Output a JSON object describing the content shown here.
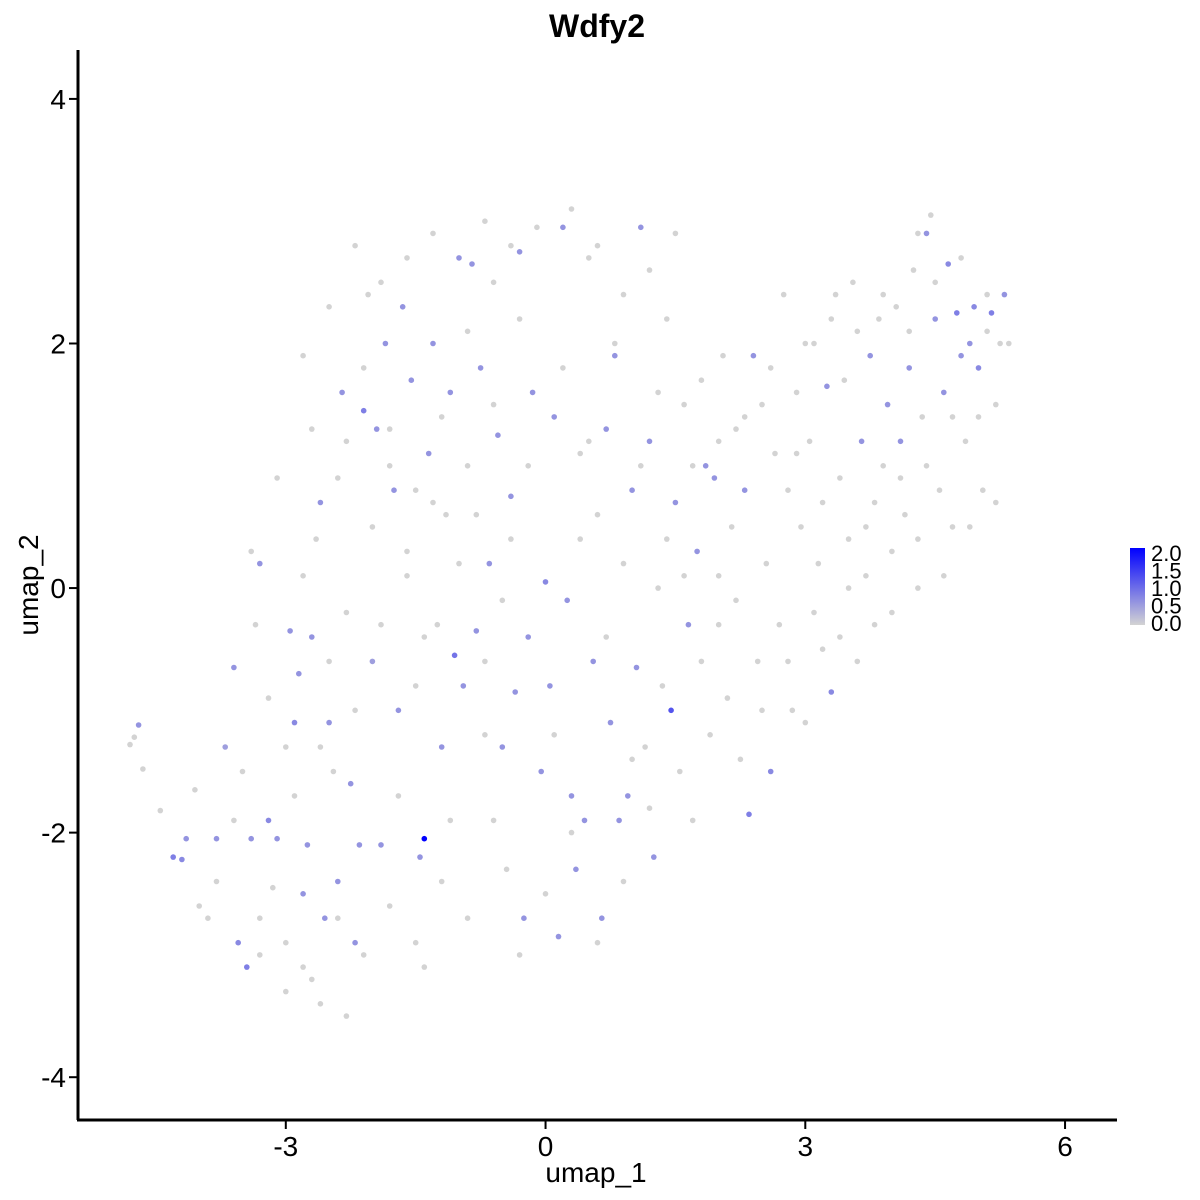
{
  "chart_data": {
    "type": "scatter",
    "title": "Wdfy2",
    "xlabel": "umap_1",
    "ylabel": "umap_2",
    "xlim": [
      -5.4,
      6.6
    ],
    "ylim": [
      -4.35,
      4.4
    ],
    "xticks": [
      {
        "value": -3,
        "label": "-3"
      },
      {
        "value": 0,
        "label": "0"
      },
      {
        "value": 3,
        "label": "3"
      },
      {
        "value": 6,
        "label": "6"
      }
    ],
    "yticks": [
      {
        "value": -4,
        "label": "-4"
      },
      {
        "value": -2,
        "label": "-2"
      },
      {
        "value": 0,
        "label": "0"
      },
      {
        "value": 2,
        "label": "2"
      },
      {
        "value": 4,
        "label": "4"
      }
    ],
    "grid": false,
    "colors": {
      "low": "#d3d3d3",
      "high": "#0000ff"
    },
    "legend": {
      "placement": "right",
      "range": [
        0,
        2.0
      ],
      "labels": [
        {
          "value": 2.0,
          "label": "2.0"
        },
        {
          "value": 1.5,
          "label": "1.5"
        },
        {
          "value": 1.0,
          "label": "1.0"
        },
        {
          "value": 0.5,
          "label": "0.5"
        },
        {
          "value": 0.0,
          "label": "0.0"
        }
      ]
    },
    "points": [
      [
        -4.8,
        -1.28,
        0
      ],
      [
        -4.75,
        -1.22,
        0
      ],
      [
        -4.7,
        -1.12,
        0.6
      ],
      [
        -4.65,
        -1.48,
        0
      ],
      [
        -4.45,
        -1.82,
        0
      ],
      [
        -4.3,
        -2.2,
        0.8
      ],
      [
        -4.2,
        -2.22,
        0.7
      ],
      [
        -4.15,
        -2.05,
        0.6
      ],
      [
        -4.05,
        -1.65,
        0
      ],
      [
        -4.0,
        -2.6,
        0
      ],
      [
        -3.9,
        -2.7,
        0
      ],
      [
        -3.8,
        -2.05,
        0.6
      ],
      [
        -3.7,
        -1.3,
        0.5
      ],
      [
        -3.6,
        -0.65,
        0.6
      ],
      [
        -3.55,
        -2.9,
        0.7
      ],
      [
        -3.45,
        -3.1,
        0.8
      ],
      [
        -3.4,
        -2.05,
        0.6
      ],
      [
        -3.35,
        -0.3,
        0
      ],
      [
        -3.3,
        0.2,
        0.6
      ],
      [
        -3.2,
        -1.9,
        0.7
      ],
      [
        -3.15,
        -2.45,
        0
      ],
      [
        -3.1,
        -2.05,
        0.6
      ],
      [
        -3.0,
        -2.9,
        0
      ],
      [
        -2.95,
        -0.35,
        0.6
      ],
      [
        -2.9,
        -1.1,
        0.7
      ],
      [
        -2.85,
        -0.7,
        0.6
      ],
      [
        -2.8,
        -2.5,
        0.6
      ],
      [
        -2.75,
        -2.1,
        0.6
      ],
      [
        -2.7,
        -0.4,
        0.6
      ],
      [
        -2.65,
        0.4,
        0
      ],
      [
        -2.6,
        0.7,
        0.6
      ],
      [
        -2.55,
        -2.7,
        0.6
      ],
      [
        -2.5,
        -1.1,
        0.6
      ],
      [
        -2.45,
        -1.5,
        0
      ],
      [
        -2.4,
        -2.4,
        0.6
      ],
      [
        -2.35,
        1.6,
        0.6
      ],
      [
        -2.3,
        1.2,
        0
      ],
      [
        -2.25,
        -1.6,
        0.6
      ],
      [
        -2.2,
        -2.9,
        0.6
      ],
      [
        -2.15,
        -2.1,
        0.6
      ],
      [
        -2.1,
        1.45,
        0.8
      ],
      [
        -2.05,
        2.4,
        0
      ],
      [
        -2.0,
        -0.6,
        0.5
      ],
      [
        -1.95,
        1.3,
        0.6
      ],
      [
        -1.9,
        -2.1,
        0.6
      ],
      [
        -1.85,
        2.0,
        0.6
      ],
      [
        -1.8,
        1.0,
        0
      ],
      [
        -1.75,
        0.8,
        0.6
      ],
      [
        -1.7,
        -1.0,
        0.6
      ],
      [
        -1.65,
        2.3,
        0.6
      ],
      [
        -1.6,
        0.3,
        0
      ],
      [
        -1.55,
        1.7,
        0.6
      ],
      [
        -1.5,
        -0.8,
        0
      ],
      [
        -1.45,
        -2.2,
        0.6
      ],
      [
        -1.4,
        -2.05,
        2.0
      ],
      [
        -1.35,
        1.1,
        0.6
      ],
      [
        -1.3,
        2.0,
        0.6
      ],
      [
        -1.25,
        -0.3,
        0
      ],
      [
        -1.2,
        -1.3,
        0.6
      ],
      [
        -1.15,
        0.6,
        0
      ],
      [
        -1.1,
        1.6,
        0.6
      ],
      [
        -1.05,
        -0.55,
        0.9
      ],
      [
        -1.0,
        2.7,
        0.6
      ],
      [
        -0.95,
        -0.8,
        0.6
      ],
      [
        -0.9,
        1.0,
        0
      ],
      [
        -0.85,
        2.65,
        0.6
      ],
      [
        -0.8,
        -0.35,
        0.6
      ],
      [
        -0.75,
        1.8,
        0.6
      ],
      [
        -0.7,
        -1.2,
        0
      ],
      [
        -0.65,
        0.2,
        0.6
      ],
      [
        -0.6,
        2.5,
        0
      ],
      [
        -0.55,
        1.25,
        0.6
      ],
      [
        -0.5,
        -1.3,
        0.6
      ],
      [
        -0.45,
        -2.3,
        0
      ],
      [
        -0.4,
        0.75,
        0.6
      ],
      [
        -0.35,
        -0.85,
        0.6
      ],
      [
        -0.3,
        2.75,
        0.6
      ],
      [
        -0.25,
        -2.7,
        0.6
      ],
      [
        -0.2,
        -0.4,
        0.6
      ],
      [
        -0.15,
        1.6,
        0.6
      ],
      [
        -0.1,
        2.95,
        0
      ],
      [
        -0.05,
        -1.5,
        0.6
      ],
      [
        0.0,
        0.05,
        0.7
      ],
      [
        0.05,
        -0.8,
        0.6
      ],
      [
        0.1,
        1.4,
        0.6
      ],
      [
        0.15,
        -2.85,
        0.6
      ],
      [
        0.2,
        2.95,
        0.6
      ],
      [
        0.25,
        -0.1,
        0.6
      ],
      [
        0.3,
        -1.7,
        0.6
      ],
      [
        0.35,
        -2.3,
        0.6
      ],
      [
        0.4,
        1.1,
        0
      ],
      [
        0.45,
        -1.9,
        0.6
      ],
      [
        0.5,
        2.7,
        0
      ],
      [
        0.55,
        -0.6,
        0.6
      ],
      [
        0.6,
        0.6,
        0
      ],
      [
        0.65,
        -2.7,
        0.6
      ],
      [
        0.7,
        1.3,
        0.6
      ],
      [
        0.75,
        -1.1,
        0.6
      ],
      [
        0.8,
        1.9,
        0.6
      ],
      [
        0.85,
        -1.9,
        0.6
      ],
      [
        0.9,
        0.2,
        0
      ],
      [
        0.95,
        -1.7,
        0.6
      ],
      [
        1.0,
        0.8,
        0.6
      ],
      [
        1.05,
        -0.65,
        0.6
      ],
      [
        1.1,
        2.95,
        0.6
      ],
      [
        1.15,
        -1.3,
        0
      ],
      [
        1.2,
        1.2,
        0.6
      ],
      [
        1.25,
        -2.2,
        0.6
      ],
      [
        1.3,
        0.0,
        0
      ],
      [
        1.35,
        -0.8,
        0
      ],
      [
        1.4,
        2.2,
        0
      ],
      [
        1.45,
        -1.0,
        1.2
      ],
      [
        1.5,
        0.7,
        0.6
      ],
      [
        1.55,
        -1.5,
        0
      ],
      [
        1.6,
        1.5,
        0
      ],
      [
        1.65,
        -0.3,
        0.6
      ],
      [
        1.7,
        -1.9,
        0
      ],
      [
        1.75,
        0.3,
        0.6
      ],
      [
        1.8,
        -0.6,
        0
      ],
      [
        1.85,
        1.0,
        0.6
      ],
      [
        1.9,
        -1.2,
        0
      ],
      [
        1.95,
        0.9,
        0.6
      ],
      [
        2.0,
        -0.3,
        0
      ],
      [
        2.05,
        1.9,
        0
      ],
      [
        2.1,
        -0.9,
        0
      ],
      [
        2.15,
        0.5,
        0
      ],
      [
        2.2,
        1.3,
        0
      ],
      [
        2.25,
        -1.4,
        0
      ],
      [
        2.3,
        0.8,
        0.6
      ],
      [
        2.35,
        -1.85,
        0.8
      ],
      [
        2.4,
        1.9,
        0.6
      ],
      [
        2.45,
        -0.6,
        0
      ],
      [
        2.5,
        1.5,
        0
      ],
      [
        2.55,
        0.2,
        0
      ],
      [
        2.6,
        -1.5,
        0.7
      ],
      [
        2.65,
        1.1,
        0
      ],
      [
        2.7,
        -0.3,
        0
      ],
      [
        2.75,
        2.4,
        0
      ],
      [
        2.8,
        0.8,
        0
      ],
      [
        2.85,
        -1.0,
        0
      ],
      [
        2.9,
        1.6,
        0
      ],
      [
        2.95,
        0.5,
        0
      ],
      [
        3.0,
        -1.1,
        0
      ],
      [
        3.05,
        1.2,
        0
      ],
      [
        3.1,
        2.0,
        0
      ],
      [
        3.15,
        0.2,
        0
      ],
      [
        3.2,
        -0.5,
        0
      ],
      [
        3.25,
        1.65,
        0.6
      ],
      [
        3.3,
        -0.85,
        0.7
      ],
      [
        3.35,
        2.4,
        0
      ],
      [
        3.4,
        0.9,
        0
      ],
      [
        3.45,
        1.7,
        0
      ],
      [
        3.5,
        0.0,
        0
      ],
      [
        3.55,
        2.5,
        0
      ],
      [
        3.6,
        -0.6,
        0
      ],
      [
        3.65,
        1.2,
        0.6
      ],
      [
        3.7,
        0.5,
        0
      ],
      [
        3.75,
        1.9,
        0.6
      ],
      [
        3.8,
        -0.3,
        0
      ],
      [
        3.85,
        2.2,
        0
      ],
      [
        3.9,
        1.0,
        0
      ],
      [
        3.95,
        1.5,
        0.6
      ],
      [
        4.0,
        0.3,
        0
      ],
      [
        4.05,
        2.3,
        0
      ],
      [
        4.1,
        1.2,
        0.6
      ],
      [
        4.15,
        0.6,
        0
      ],
      [
        4.2,
        1.8,
        0.6
      ],
      [
        4.25,
        2.6,
        0
      ],
      [
        4.3,
        0.0,
        0
      ],
      [
        4.35,
        1.4,
        0
      ],
      [
        4.4,
        2.9,
        0.6
      ],
      [
        4.45,
        3.05,
        0
      ],
      [
        4.5,
        2.2,
        0.6
      ],
      [
        4.55,
        0.8,
        0
      ],
      [
        4.6,
        1.6,
        0.6
      ],
      [
        4.65,
        2.65,
        0.7
      ],
      [
        4.7,
        0.5,
        0
      ],
      [
        4.75,
        2.25,
        0.8
      ],
      [
        4.8,
        1.9,
        0.6
      ],
      [
        4.85,
        1.2,
        0
      ],
      [
        4.9,
        2.0,
        0.6
      ],
      [
        4.95,
        2.3,
        0.7
      ],
      [
        5.0,
        1.8,
        0.7
      ],
      [
        5.05,
        0.8,
        0
      ],
      [
        5.1,
        2.1,
        0
      ],
      [
        5.15,
        2.25,
        0.8
      ],
      [
        5.2,
        1.5,
        0
      ],
      [
        5.25,
        2.0,
        0
      ],
      [
        5.3,
        2.4,
        0.6
      ],
      [
        5.35,
        2.0,
        0
      ],
      [
        -3.5,
        -1.5,
        0
      ],
      [
        -3.2,
        -0.9,
        0
      ],
      [
        -2.9,
        -1.7,
        0
      ],
      [
        -2.6,
        -1.3,
        0
      ],
      [
        -2.3,
        -0.2,
        0
      ],
      [
        -2.0,
        0.5,
        0
      ],
      [
        -1.7,
        -1.7,
        0
      ],
      [
        -1.4,
        -0.4,
        0
      ],
      [
        -1.1,
        -1.9,
        0
      ],
      [
        -0.8,
        0.6,
        0
      ],
      [
        -0.5,
        -0.1,
        0
      ],
      [
        -0.2,
        1.0,
        0
      ],
      [
        0.1,
        -1.2,
        0
      ],
      [
        0.4,
        0.4,
        0
      ],
      [
        0.7,
        -0.4,
        0
      ],
      [
        1.0,
        -1.4,
        0
      ],
      [
        1.3,
        1.6,
        0
      ],
      [
        1.6,
        0.1,
        0
      ],
      [
        -3.8,
        -2.4,
        0
      ],
      [
        -3.6,
        -1.9,
        0
      ],
      [
        -3.3,
        -2.7,
        0
      ],
      [
        -3.0,
        -1.3,
        0
      ],
      [
        -2.7,
        -3.2,
        0
      ],
      [
        -2.4,
        -2.7,
        0
      ],
      [
        -2.1,
        -3.0,
        0
      ],
      [
        -1.8,
        -2.6,
        0
      ],
      [
        -1.5,
        -2.9,
        0
      ],
      [
        -1.2,
        -2.4,
        0
      ],
      [
        -0.9,
        -2.7,
        0
      ],
      [
        -0.6,
        -1.9,
        0
      ],
      [
        -0.3,
        -3.0,
        0
      ],
      [
        0.0,
        -2.5,
        0
      ],
      [
        0.3,
        -2.0,
        0
      ],
      [
        0.6,
        -2.9,
        0
      ],
      [
        0.9,
        -2.4,
        0
      ],
      [
        1.2,
        -1.8,
        0
      ],
      [
        -2.6,
        -3.4,
        0
      ],
      [
        -2.3,
        -3.5,
        0
      ],
      [
        -1.4,
        -3.1,
        0
      ],
      [
        -3.3,
        -3.0,
        0
      ],
      [
        -3.0,
        -3.3,
        0
      ],
      [
        -2.8,
        -3.1,
        0
      ],
      [
        -2.8,
        1.9,
        0
      ],
      [
        -2.5,
        2.3,
        0
      ],
      [
        -2.2,
        2.8,
        0
      ],
      [
        -1.9,
        2.5,
        0
      ],
      [
        -1.6,
        2.7,
        0
      ],
      [
        -1.3,
        2.9,
        0
      ],
      [
        -0.7,
        3.0,
        0
      ],
      [
        -0.4,
        2.8,
        0
      ],
      [
        0.3,
        3.1,
        0
      ],
      [
        0.6,
        2.8,
        0
      ],
      [
        0.9,
        2.4,
        0
      ],
      [
        1.2,
        2.6,
        0
      ],
      [
        1.5,
        2.9,
        0
      ],
      [
        -2.7,
        1.3,
        0
      ],
      [
        -2.4,
        0.9,
        0
      ],
      [
        -2.1,
        1.8,
        0
      ],
      [
        -1.8,
        1.3,
        0
      ],
      [
        -1.5,
        0.8,
        0
      ],
      [
        -1.2,
        1.4,
        0
      ],
      [
        -0.9,
        2.1,
        0
      ],
      [
        -0.6,
        1.5,
        0
      ],
      [
        -0.3,
        2.2,
        0
      ],
      [
        0.2,
        1.8,
        0
      ],
      [
        0.5,
        1.2,
        0
      ],
      [
        0.8,
        2.0,
        0
      ],
      [
        1.1,
        1.0,
        0
      ],
      [
        1.4,
        0.4,
        0
      ],
      [
        1.7,
        1.0,
        0
      ],
      [
        2.0,
        0.1,
        0
      ],
      [
        -3.4,
        0.3,
        0
      ],
      [
        -3.1,
        0.9,
        0
      ],
      [
        -2.8,
        0.1,
        0
      ],
      [
        -2.5,
        -0.6,
        0
      ],
      [
        -2.2,
        -1.0,
        0
      ],
      [
        -1.9,
        -0.3,
        0
      ],
      [
        -1.6,
        0.1,
        0
      ],
      [
        -1.3,
        0.7,
        0
      ],
      [
        -1.0,
        0.2,
        0
      ],
      [
        -0.7,
        -0.6,
        0
      ],
      [
        -0.4,
        0.4,
        0
      ],
      [
        2.2,
        -0.1,
        0
      ],
      [
        2.5,
        -1.0,
        0
      ],
      [
        2.8,
        -0.6,
        0
      ],
      [
        3.1,
        -0.2,
        0
      ],
      [
        3.4,
        -0.4,
        0
      ],
      [
        3.7,
        0.1,
        0
      ],
      [
        4.0,
        -0.2,
        0
      ],
      [
        4.3,
        0.4,
        0
      ],
      [
        4.6,
        0.1,
        0
      ],
      [
        4.9,
        0.5,
        0
      ],
      [
        5.2,
        0.7,
        0
      ],
      [
        5.0,
        1.4,
        0
      ],
      [
        4.7,
        1.4,
        0
      ],
      [
        4.4,
        1.0,
        0
      ],
      [
        4.1,
        0.9,
        0
      ],
      [
        3.8,
        0.7,
        0
      ],
      [
        3.5,
        0.4,
        0
      ],
      [
        3.2,
        0.7,
        0
      ],
      [
        2.9,
        1.1,
        0
      ],
      [
        2.6,
        1.8,
        0
      ],
      [
        2.3,
        1.4,
        0
      ],
      [
        2.0,
        1.2,
        0
      ],
      [
        1.8,
        1.7,
        0
      ],
      [
        3.0,
        2.0,
        0
      ],
      [
        3.3,
        2.2,
        0
      ],
      [
        3.6,
        2.1,
        0
      ],
      [
        3.9,
        2.4,
        0
      ],
      [
        4.2,
        2.1,
        0
      ],
      [
        4.5,
        2.5,
        0
      ],
      [
        4.8,
        2.7,
        0
      ],
      [
        5.1,
        2.4,
        0
      ],
      [
        4.3,
        2.9,
        0
      ]
    ]
  }
}
